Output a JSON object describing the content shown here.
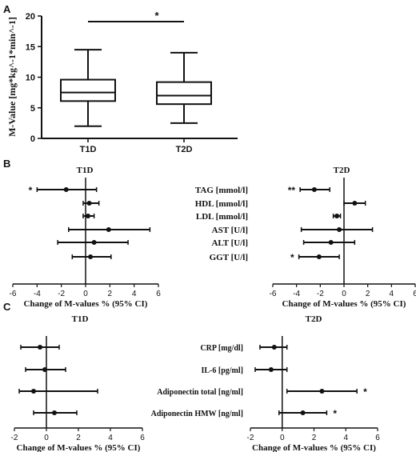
{
  "chart_data": [
    {
      "panel": "A",
      "type": "box",
      "categories": [
        "T1D",
        "T2D"
      ],
      "boxes": [
        {
          "category": "T1D",
          "min": 2.0,
          "q1": 6.1,
          "median": 7.5,
          "q3": 9.6,
          "max": 14.5
        },
        {
          "category": "T2D",
          "min": 2.5,
          "q1": 5.6,
          "median": 7.0,
          "q3": 9.2,
          "max": 14.0
        }
      ],
      "ylabel": "M-Value [mg*kg^-1*min^-1]",
      "ylim": [
        0,
        20
      ],
      "yticks": [
        "0",
        "5",
        "10",
        "15",
        "20"
      ],
      "significance": "*",
      "grid": false
    },
    {
      "panel": "B",
      "type": "forest",
      "row_labels": [
        "TAG [mmol/l]",
        "HDL [mmol/l]",
        "LDL [mmol/l]",
        "AST [U/l]",
        "ALT [U/l]",
        "GGT [U/l]"
      ],
      "xlabel": "Change of M-values % (95% CI)",
      "xlim": [
        -6,
        6
      ],
      "xticks": [
        "-6",
        "-4",
        "-2",
        "0",
        "2",
        "4",
        "6"
      ],
      "groups": [
        {
          "title": "T1D",
          "estimates": [
            -1.6,
            0.3,
            0.2,
            1.9,
            0.7,
            0.4
          ],
          "lower": [
            -4.0,
            -0.2,
            -0.2,
            -1.4,
            -2.3,
            -1.1
          ],
          "upper": [
            0.9,
            1.1,
            0.7,
            5.3,
            3.5,
            2.1
          ],
          "marks": [
            "*",
            "",
            "",
            "",
            "",
            ""
          ]
        },
        {
          "title": "T2D",
          "estimates": [
            -2.5,
            0.9,
            -0.6,
            -0.4,
            -1.1,
            -2.1
          ],
          "lower": [
            -3.7,
            0.0,
            -0.9,
            -3.6,
            -3.4,
            -3.8
          ],
          "upper": [
            -1.2,
            1.8,
            -0.3,
            2.4,
            0.9,
            -0.4
          ],
          "marks": [
            "**",
            "",
            "",
            "",
            "",
            "*"
          ]
        }
      ]
    },
    {
      "panel": "C",
      "type": "forest",
      "row_labels": [
        "CRP [mg/dl]",
        "IL-6 [pg/ml]",
        "Adiponectin total [ng/ml]",
        "Adiponectin HMW [ng/ml]"
      ],
      "xlabel": "Change of M-values % (95% CI)",
      "xlim": [
        -2,
        6
      ],
      "xticks": [
        "-2",
        "0",
        "2",
        "4",
        "6"
      ],
      "groups": [
        {
          "title": "T1D",
          "estimates": [
            -0.4,
            -0.1,
            -0.8,
            0.5
          ],
          "lower": [
            -1.6,
            -1.3,
            -1.7,
            -0.8
          ],
          "upper": [
            0.8,
            1.2,
            3.2,
            1.9
          ],
          "marks": [
            "",
            "",
            "",
            ""
          ]
        },
        {
          "title": "T2D",
          "estimates": [
            -0.5,
            -0.7,
            2.5,
            1.3
          ],
          "lower": [
            -1.4,
            -1.7,
            0.3,
            -0.2
          ],
          "upper": [
            0.3,
            0.3,
            4.7,
            2.8
          ],
          "marks": [
            "",
            "",
            "*",
            "*"
          ]
        }
      ]
    }
  ],
  "panel_letters": [
    "A",
    "B",
    "C"
  ]
}
